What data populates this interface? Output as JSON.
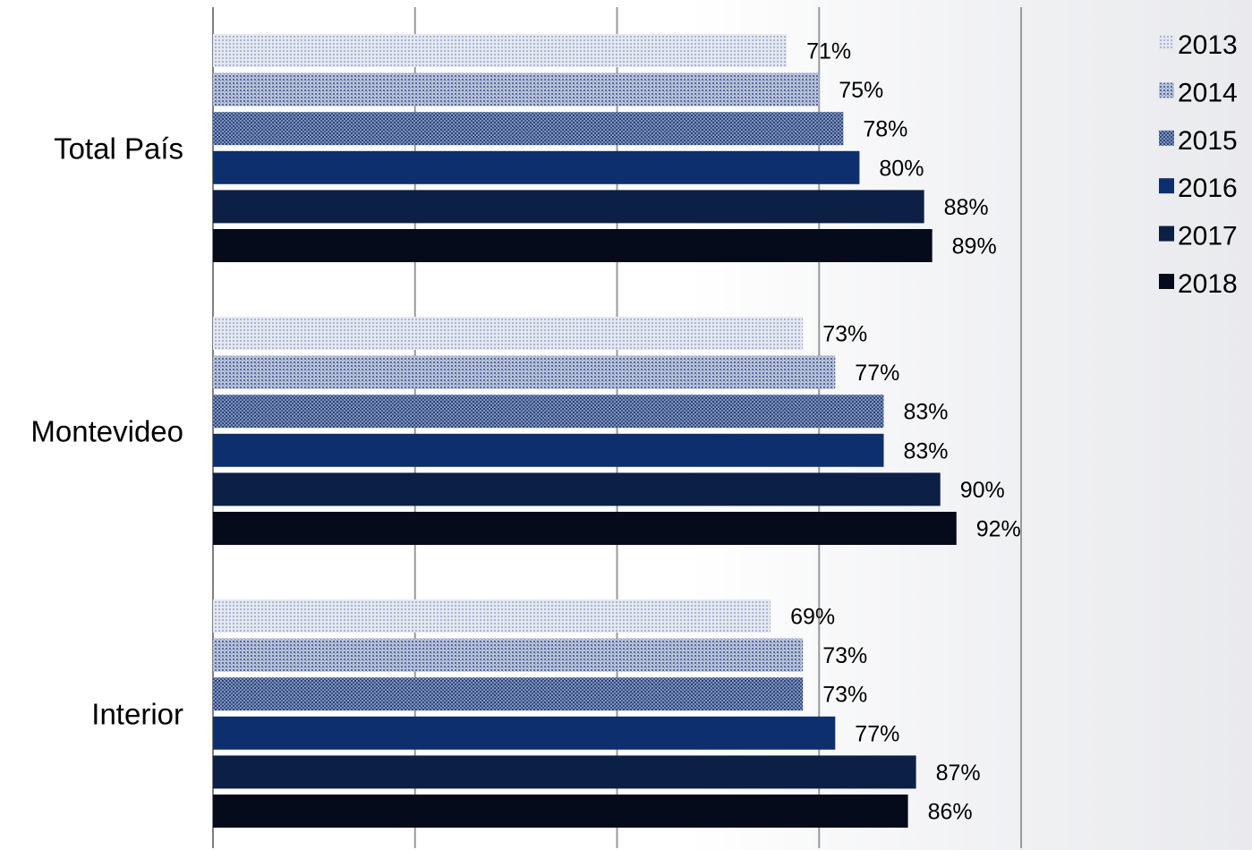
{
  "chart_data": {
    "type": "bar",
    "orientation": "horizontal",
    "title": "",
    "xlabel": "",
    "ylabel": "",
    "categories": [
      "Total País",
      "Montevideo",
      "Interior"
    ],
    "xlim": [
      0,
      100
    ],
    "grid": true,
    "legend_position": "top-right",
    "series": [
      {
        "name": "2013",
        "values": [
          71,
          73,
          69
        ],
        "labels": [
          "71%",
          "73%",
          "69%"
        ],
        "color": "#c8cfe0"
      },
      {
        "name": "2014",
        "values": [
          75,
          77,
          73
        ],
        "labels": [
          "75%",
          "77%",
          "73%"
        ],
        "color": "#8a9bc2"
      },
      {
        "name": "2015",
        "values": [
          78,
          83,
          73
        ],
        "labels": [
          "78%",
          "83%",
          "73%"
        ],
        "color": "#4d6596"
      },
      {
        "name": "2016",
        "values": [
          80,
          83,
          77
        ],
        "labels": [
          "80%",
          "83%",
          "77%"
        ],
        "color": "#0e2f6e"
      },
      {
        "name": "2017",
        "values": [
          88,
          90,
          87
        ],
        "labels": [
          "88%",
          "90%",
          "87%"
        ],
        "color": "#0c1f45"
      },
      {
        "name": "2018",
        "values": [
          89,
          92,
          86
        ],
        "labels": [
          "89%",
          "92%",
          "86%"
        ],
        "color": "#050b1a"
      }
    ]
  }
}
